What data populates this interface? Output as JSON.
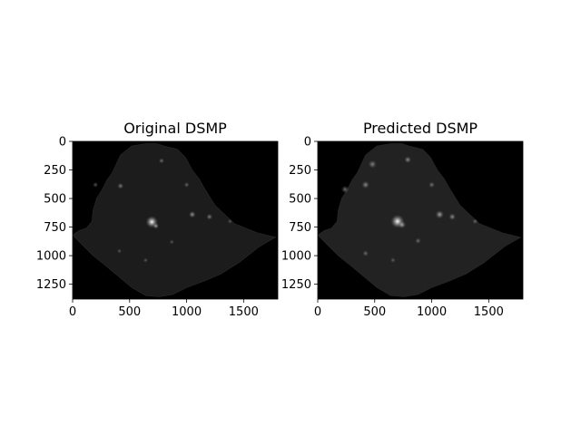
{
  "figure": {
    "background": "#ffffff",
    "image_background": "#000000",
    "colormap": "gray"
  },
  "panels": [
    {
      "title": "Original DSMP",
      "xlim": [
        0,
        1800
      ],
      "ylim": [
        1380,
        0
      ],
      "x_ticks": [
        {
          "value": 0,
          "label": "0"
        },
        {
          "value": 500,
          "label": "500"
        },
        {
          "value": 1000,
          "label": "1000"
        },
        {
          "value": 1500,
          "label": "1500"
        }
      ],
      "y_ticks": [
        {
          "value": 0,
          "label": "0"
        },
        {
          "value": 250,
          "label": "250"
        },
        {
          "value": 500,
          "label": "500"
        },
        {
          "value": 750,
          "label": "750"
        },
        {
          "value": 1000,
          "label": "1000"
        },
        {
          "value": 1250,
          "label": "1250"
        }
      ],
      "land_color": "#1c1c1c",
      "bright_spots": [
        {
          "x": 695,
          "y": 705,
          "r": 14,
          "intensity": 1.0
        },
        {
          "x": 730,
          "y": 740,
          "r": 6,
          "intensity": 0.6
        },
        {
          "x": 1050,
          "y": 640,
          "r": 7,
          "intensity": 0.55
        },
        {
          "x": 1200,
          "y": 660,
          "r": 6,
          "intensity": 0.45
        },
        {
          "x": 420,
          "y": 390,
          "r": 6,
          "intensity": 0.45
        },
        {
          "x": 780,
          "y": 170,
          "r": 5,
          "intensity": 0.4
        },
        {
          "x": 1000,
          "y": 380,
          "r": 5,
          "intensity": 0.35
        },
        {
          "x": 200,
          "y": 380,
          "r": 5,
          "intensity": 0.35
        },
        {
          "x": 410,
          "y": 960,
          "r": 4,
          "intensity": 0.3
        },
        {
          "x": 870,
          "y": 880,
          "r": 4,
          "intensity": 0.3
        },
        {
          "x": 1380,
          "y": 700,
          "r": 4,
          "intensity": 0.3
        },
        {
          "x": 640,
          "y": 1040,
          "r": 4,
          "intensity": 0.3
        }
      ]
    },
    {
      "title": "Predicted DSMP",
      "xlim": [
        0,
        1800
      ],
      "ylim": [
        1380,
        0
      ],
      "x_ticks": [
        {
          "value": 0,
          "label": "0"
        },
        {
          "value": 500,
          "label": "500"
        },
        {
          "value": 1000,
          "label": "1000"
        },
        {
          "value": 1500,
          "label": "1500"
        }
      ],
      "y_ticks": [
        {
          "value": 0,
          "label": "0"
        },
        {
          "value": 250,
          "label": "250"
        },
        {
          "value": 500,
          "label": "500"
        },
        {
          "value": 750,
          "label": "750"
        },
        {
          "value": 1000,
          "label": "1000"
        },
        {
          "value": 1250,
          "label": "1250"
        }
      ],
      "land_color": "#222222",
      "bright_spots": [
        {
          "x": 700,
          "y": 700,
          "r": 16,
          "intensity": 1.0
        },
        {
          "x": 740,
          "y": 730,
          "r": 8,
          "intensity": 0.6
        },
        {
          "x": 1070,
          "y": 640,
          "r": 9,
          "intensity": 0.6
        },
        {
          "x": 1180,
          "y": 660,
          "r": 7,
          "intensity": 0.5
        },
        {
          "x": 420,
          "y": 380,
          "r": 8,
          "intensity": 0.5
        },
        {
          "x": 790,
          "y": 160,
          "r": 7,
          "intensity": 0.5
        },
        {
          "x": 480,
          "y": 200,
          "r": 9,
          "intensity": 0.45
        },
        {
          "x": 1000,
          "y": 380,
          "r": 6,
          "intensity": 0.4
        },
        {
          "x": 240,
          "y": 420,
          "r": 8,
          "intensity": 0.45
        },
        {
          "x": 420,
          "y": 980,
          "r": 6,
          "intensity": 0.35
        },
        {
          "x": 880,
          "y": 870,
          "r": 6,
          "intensity": 0.35
        },
        {
          "x": 1380,
          "y": 700,
          "r": 5,
          "intensity": 0.35
        },
        {
          "x": 660,
          "y": 1040,
          "r": 5,
          "intensity": 0.3
        }
      ]
    }
  ],
  "country_outline": [
    [
      350,
      270
    ],
    [
      420,
      120
    ],
    [
      520,
      40
    ],
    [
      640,
      20
    ],
    [
      740,
      20
    ],
    [
      800,
      40
    ],
    [
      920,
      70
    ],
    [
      990,
      140
    ],
    [
      1050,
      250
    ],
    [
      1110,
      330
    ],
    [
      1150,
      400
    ],
    [
      1250,
      560
    ],
    [
      1420,
      720
    ],
    [
      1620,
      800
    ],
    [
      1780,
      840
    ],
    [
      1640,
      920
    ],
    [
      1460,
      1060
    ],
    [
      1300,
      1160
    ],
    [
      1160,
      1220
    ],
    [
      1000,
      1280
    ],
    [
      880,
      1340
    ],
    [
      760,
      1360
    ],
    [
      640,
      1350
    ],
    [
      520,
      1280
    ],
    [
      400,
      1180
    ],
    [
      280,
      1080
    ],
    [
      180,
      1000
    ],
    [
      60,
      880
    ],
    [
      0,
      820
    ],
    [
      60,
      780
    ],
    [
      120,
      760
    ],
    [
      170,
      700
    ],
    [
      180,
      600
    ],
    [
      210,
      500
    ],
    [
      260,
      420
    ],
    [
      300,
      340
    ]
  ]
}
